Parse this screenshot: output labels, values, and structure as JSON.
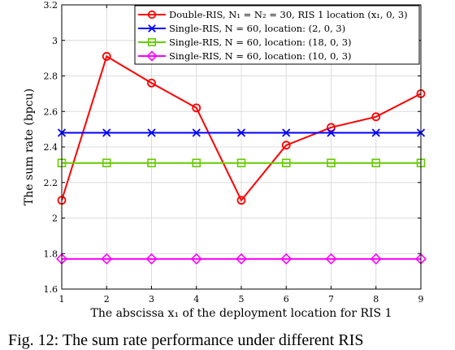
{
  "chart_data": {
    "type": "line",
    "xlabel": "The abscissa x₁ of the deployment location for RIS 1",
    "ylabel": "The sum rate (bpcu)",
    "xlim": [
      1,
      9
    ],
    "ylim": [
      1.6,
      3.2
    ],
    "x_ticks": [
      "1",
      "2",
      "3",
      "4",
      "5",
      "6",
      "7",
      "8",
      "9"
    ],
    "y_ticks": [
      "1.6",
      "1.8",
      "2",
      "2.2",
      "2.4",
      "2.6",
      "2.8",
      "3",
      "3.2"
    ],
    "grid": true,
    "legend_position": "top-right",
    "x": [
      1,
      2,
      3,
      4,
      5,
      6,
      7,
      8,
      9
    ],
    "series": [
      {
        "name": "Double-RIS, N₁ = N₂ = 30, RIS 1 location (x₁, 0, 3)",
        "color": "#ff0000",
        "marker": "circle",
        "values": [
          2.1,
          2.91,
          2.76,
          2.62,
          2.1,
          2.41,
          2.51,
          2.57,
          2.7
        ]
      },
      {
        "name": "Single-RIS, N = 60, location: (2, 0, 3)",
        "color": "#0000ff",
        "marker": "x",
        "values": [
          2.48,
          2.48,
          2.48,
          2.48,
          2.48,
          2.48,
          2.48,
          2.48,
          2.48
        ]
      },
      {
        "name": "Single-RIS, N = 60, location: (18, 0, 3)",
        "color": "#66cc00",
        "marker": "square",
        "values": [
          2.31,
          2.31,
          2.31,
          2.31,
          2.31,
          2.31,
          2.31,
          2.31,
          2.31
        ]
      },
      {
        "name": "Single-RIS, N = 60, location: (10, 0, 3)",
        "color": "#ff00ff",
        "marker": "diamond",
        "values": [
          1.77,
          1.77,
          1.77,
          1.77,
          1.77,
          1.77,
          1.77,
          1.77,
          1.77
        ]
      }
    ]
  },
  "caption": "Fig. 12: The sum rate performance under different RIS"
}
